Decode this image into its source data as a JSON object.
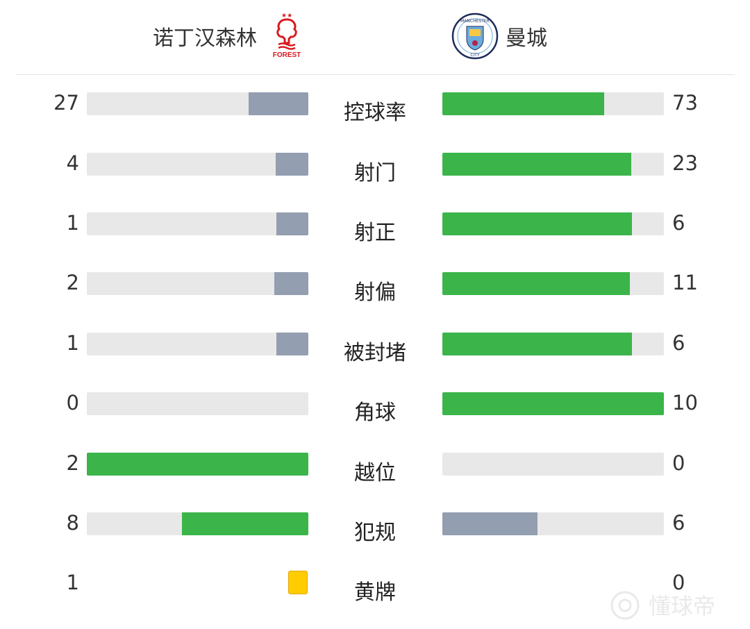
{
  "home": {
    "name": "诺丁汉森林",
    "logo_text": "FOREST"
  },
  "away": {
    "name": "曼城",
    "logo_text": [
      "MANCHESTER",
      "CITY"
    ]
  },
  "colors": {
    "leader": "#3bb54a",
    "trailer": "#939eb0",
    "track": "#e8e8e8",
    "yellow_card": "#ffcc00"
  },
  "stats": [
    {
      "label": "控球率",
      "home": "27",
      "away": "73"
    },
    {
      "label": "射门",
      "home": "4",
      "away": "23"
    },
    {
      "label": "射正",
      "home": "1",
      "away": "6"
    },
    {
      "label": "射偏",
      "home": "2",
      "away": "11"
    },
    {
      "label": "被封堵",
      "home": "1",
      "away": "6"
    },
    {
      "label": "角球",
      "home": "0",
      "away": "10"
    },
    {
      "label": "越位",
      "home": "2",
      "away": "0"
    },
    {
      "label": "犯规",
      "home": "8",
      "away": "6"
    },
    {
      "label": "黄牌",
      "home": "1",
      "away": "0",
      "icon": "yellow-card-icon"
    }
  ],
  "watermark": "懂球帝"
}
